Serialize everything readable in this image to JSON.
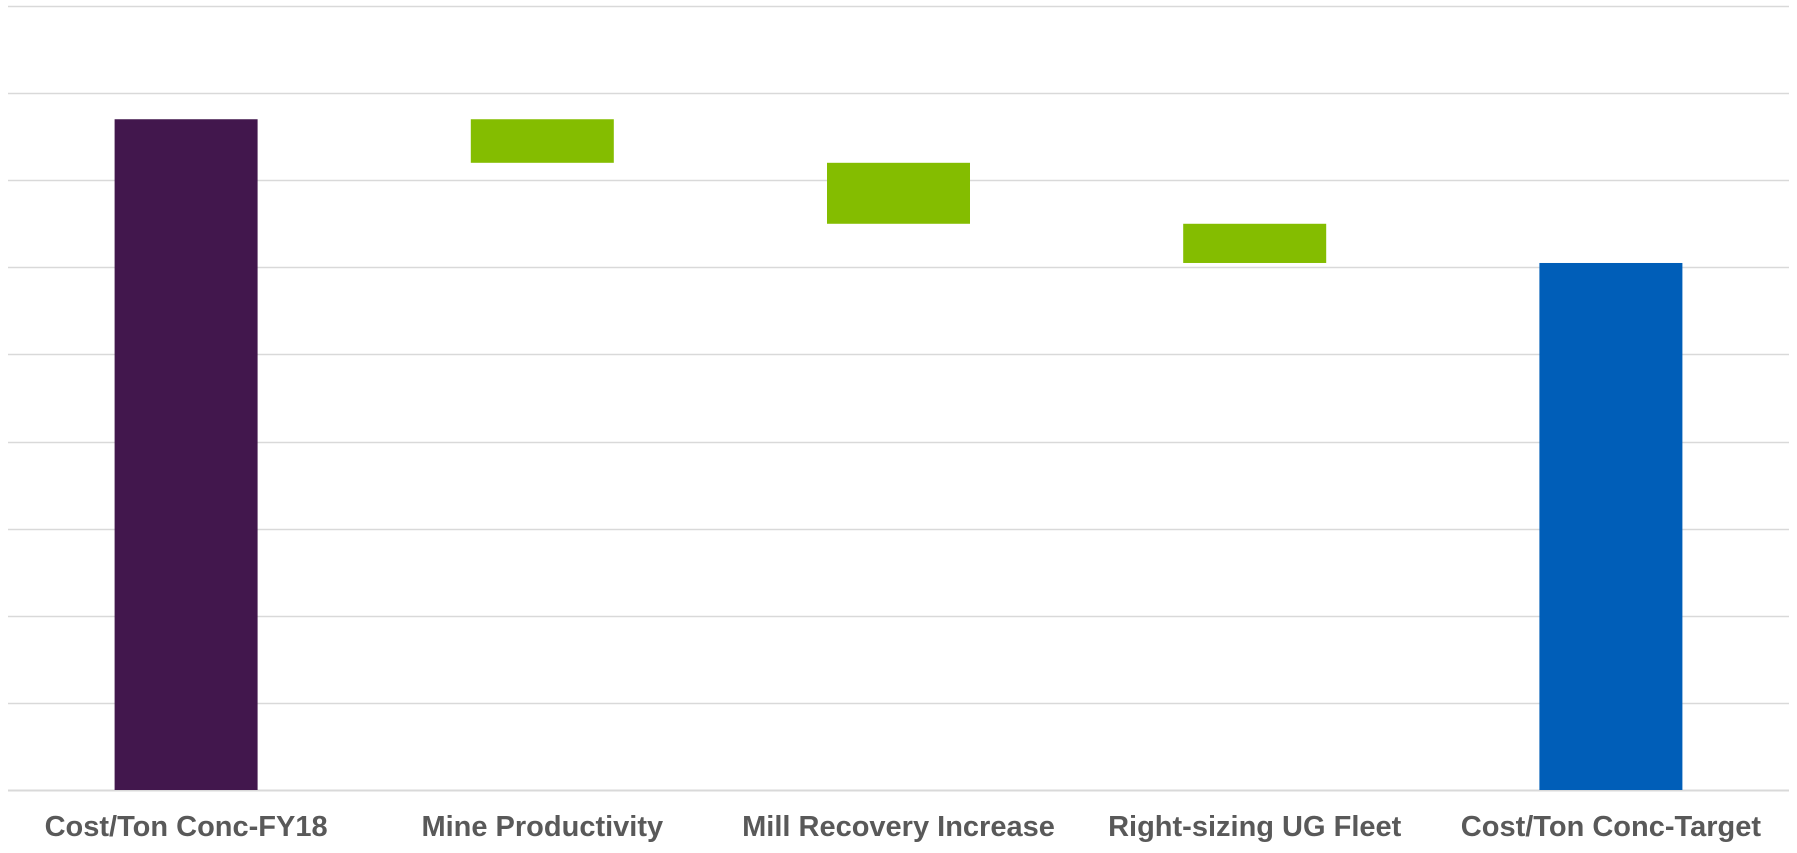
{
  "chart_data": {
    "type": "bar",
    "subtype": "waterfall",
    "title": "",
    "xlabel": "",
    "ylabel": "",
    "ylim": [
      0,
      9
    ],
    "grid": true,
    "legend": "none",
    "categories": [
      "Cost/Ton Conc-FY18",
      "Mine Productivity",
      "Mill Recovery Increase",
      "Right-sizing UG Fleet",
      "Cost/Ton Conc-Target"
    ],
    "bars": [
      {
        "kind": "total",
        "start": 0,
        "end": 7.7
      },
      {
        "kind": "decrease",
        "start": 7.7,
        "end": 7.2
      },
      {
        "kind": "decrease",
        "start": 7.2,
        "end": 6.5
      },
      {
        "kind": "decrease",
        "start": 6.5,
        "end": 6.05
      },
      {
        "kind": "total",
        "start": 0,
        "end": 6.05
      }
    ],
    "colors": {
      "total_start": "#42174d",
      "decrease": "#84bd00",
      "total_end": "#005eb8",
      "grid": "#d9d9d9",
      "axis": "#d9d9d9",
      "label": "#595959"
    }
  }
}
